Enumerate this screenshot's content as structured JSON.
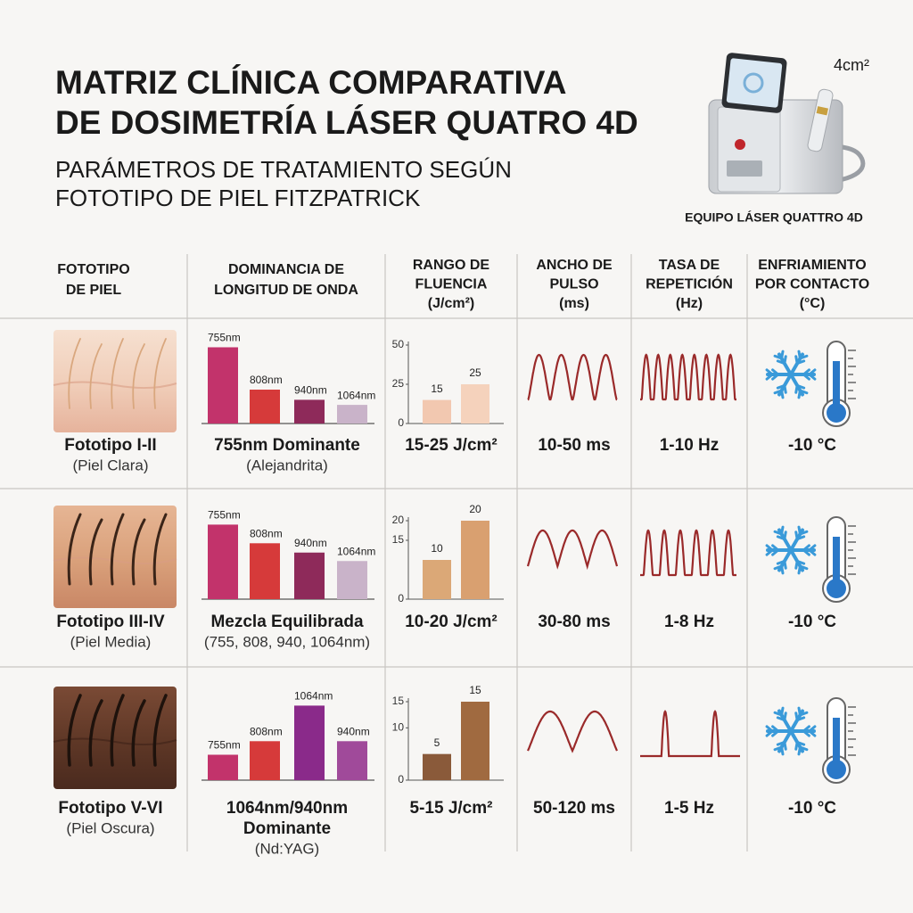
{
  "header": {
    "title_lines": [
      "MATRIZ CLÍNICA COMPARATIVA",
      "DE DOSIMETRÍA LÁSER QUATRO 4D"
    ],
    "subtitle_lines": [
      "PARÁMETROS DE TRATAMIENTO SEGÚN",
      "FOTOTIPO DE PIEL FITZPATRICK"
    ]
  },
  "device": {
    "spot_label": "4cm²",
    "caption": "EQUIPO LÁSER QUATTRO 4D"
  },
  "table": {
    "columns": [
      [
        "FOTOTIPO",
        "DE PIEL"
      ],
      [
        "DOMINANCIA DE",
        "LONGITUD DE ONDA"
      ],
      [
        "RANGO DE",
        "FLUENCIA",
        "(J/cm²)"
      ],
      [
        "ANCHO DE",
        "PULSO",
        "(ms)"
      ],
      [
        "TASA DE",
        "REPETICIÓN",
        "(Hz)"
      ],
      [
        "ENFRIAMIENTO",
        "POR CONTACTO",
        "(°C)"
      ]
    ],
    "rows": [
      {
        "phototype": "Fototipo I-II",
        "skin": "(Piel Clara)",
        "wavelength_chart": {
          "type": "bar",
          "categories": [
            "755nm",
            "808nm",
            "940nm",
            "1064nm"
          ],
          "values": [
            90,
            40,
            28,
            22
          ],
          "colors": [
            "#c2336b",
            "#d63a3a",
            "#8e2a5a",
            "#c9b3c9"
          ]
        },
        "wavelength_lines": [
          "755nm Dominante"
        ],
        "wavelength_note": "(Alejandrita)",
        "fluence_chart": {
          "type": "bar",
          "values": [
            15,
            25
          ],
          "ylim": [
            0,
            50
          ],
          "yticks": [
            0,
            25,
            50
          ],
          "colors": [
            "#f2c8b0",
            "#f5d2bc"
          ]
        },
        "fluence": "15-25 J/cm²",
        "pulse_width": "10-50 ms",
        "repetition": "1-10 Hz",
        "cooling": "-10 °C"
      },
      {
        "phototype": "Fototipo III-IV",
        "skin": "(Piel Media)",
        "wavelength_chart": {
          "type": "bar",
          "categories": [
            "755nm",
            "808nm",
            "940nm",
            "1064nm"
          ],
          "values": [
            88,
            66,
            55,
            45
          ],
          "colors": [
            "#c2336b",
            "#d63a3a",
            "#8e2a5a",
            "#c9b3c9"
          ]
        },
        "wavelength_lines": [
          "Mezcla Equilibrada"
        ],
        "wavelength_note": "(755, 808, 940, 1064nm)",
        "fluence_chart": {
          "type": "bar",
          "values": [
            10,
            20
          ],
          "ylim": [
            0,
            20
          ],
          "yticks": [
            0,
            15,
            20
          ],
          "colors": [
            "#dba877",
            "#d9a070"
          ]
        },
        "fluence": "10-20 J/cm²",
        "pulse_width": "30-80 ms",
        "repetition": "1-8 Hz",
        "cooling": "-10 °C"
      },
      {
        "phototype": "Fototipo V-VI",
        "skin": "(Piel Oscura)",
        "wavelength_chart": {
          "type": "bar",
          "categories": [
            "755nm",
            "808nm",
            "1064nm",
            "940nm"
          ],
          "values": [
            30,
            46,
            88,
            46
          ],
          "colors": [
            "#c2336b",
            "#d63a3a",
            "#8a2a8a",
            "#a04a9a"
          ]
        },
        "wavelength_lines": [
          "1064nm/940nm",
          "Dominante"
        ],
        "wavelength_note": "(Nd:YAG)",
        "fluence_chart": {
          "type": "bar",
          "values": [
            5,
            15
          ],
          "ylim": [
            0,
            15
          ],
          "yticks": [
            0,
            10,
            15
          ],
          "colors": [
            "#8a5a3a",
            "#a06a40"
          ]
        },
        "fluence": "5-15 J/cm²",
        "pulse_width": "50-120 ms",
        "repetition": "1-5 Hz",
        "cooling": "-10 °C"
      }
    ]
  }
}
